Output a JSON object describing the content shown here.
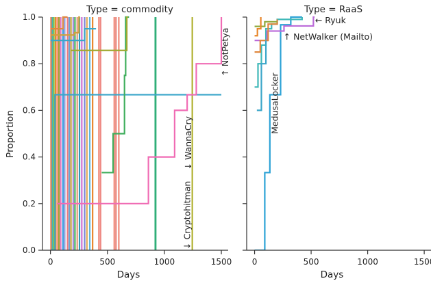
{
  "chart_data": {
    "type": "line",
    "chart_style": "step",
    "ylabel": "Proportion",
    "ylim": [
      0,
      1
    ],
    "yticks": [
      0.0,
      0.2,
      0.4,
      0.6,
      0.8,
      1.0
    ],
    "shared_y": true,
    "panels": [
      {
        "title": "Type = commodity",
        "xlabel": "Days",
        "xlim": [
          -70,
          1560
        ],
        "xticks": [
          0,
          500,
          1000,
          1500
        ],
        "vlines": [
          {
            "x": 5,
            "color": "#e07b54"
          },
          {
            "x": 18,
            "color": "#3fb8b8"
          },
          {
            "x": 30,
            "color": "#8fbf3f"
          },
          {
            "x": 45,
            "color": "#e8862a"
          },
          {
            "x": 60,
            "color": "#f28e6e"
          },
          {
            "x": 75,
            "color": "#a0a030"
          },
          {
            "x": 90,
            "color": "#e377c2"
          },
          {
            "x": 110,
            "color": "#3a9ee0"
          },
          {
            "x": 125,
            "color": "#8b9bd9"
          },
          {
            "x": 150,
            "color": "#f07b80"
          },
          {
            "x": 165,
            "color": "#6aa6d0"
          },
          {
            "x": 180,
            "color": "#c7a03a"
          },
          {
            "x": 200,
            "color": "#a98bd6"
          },
          {
            "x": 215,
            "color": "#3fae5c"
          },
          {
            "x": 235,
            "color": "#e39a7a"
          },
          {
            "x": 255,
            "color": "#2e9ab4"
          },
          {
            "x": 275,
            "color": "#d070d0"
          },
          {
            "x": 300,
            "color": "#7a86d8"
          },
          {
            "x": 320,
            "color": "#e0aa5a"
          },
          {
            "x": 345,
            "color": "#5bb6e0"
          },
          {
            "x": 370,
            "color": "#e8862a"
          },
          {
            "x": 425,
            "color": "#f08a7a"
          },
          {
            "x": 440,
            "color": "#ef8a84"
          },
          {
            "x": 560,
            "color": "#f08a7a"
          },
          {
            "x": 575,
            "color": "#e8857c"
          },
          {
            "x": 600,
            "color": "#f08a7a"
          },
          {
            "x": 920,
            "color": "#2fae78"
          },
          {
            "x": 924,
            "color": "#2fae78"
          },
          {
            "x": 1245,
            "color": "#b0b030"
          }
        ],
        "series": [
          {
            "color": "#3aa6c9",
            "x": [
              0,
              40,
              1500
            ],
            "y": [
              0,
              0.667,
              0.667
            ]
          },
          {
            "color": "#f06bb4",
            "x": [
              60,
              860,
              1090,
              1200,
              1280,
              1500
            ],
            "y": [
              0.2,
              0.4,
              0.6,
              0.667,
              0.8,
              1.0
            ]
          },
          {
            "color": "#3fae5c",
            "x": [
              450,
              550,
              650,
              660,
              690
            ],
            "y": [
              0.333,
              0.5,
              0.75,
              1.0,
              1.0
            ]
          },
          {
            "color": "#a0a830",
            "x": [
              180,
              240,
              670,
              680
            ],
            "y": [
              0.857,
              0.857,
              1.0,
              1.0
            ]
          },
          {
            "color": "#d0a040",
            "x": [
              0,
              210,
              250,
              260
            ],
            "y": [
              0.923,
              0.933,
              1.0,
              1.0
            ]
          },
          {
            "color": "#e08840",
            "x": [
              0,
              40,
              110,
              150
            ],
            "y": [
              0.95,
              0.95,
              1.0,
              1.0
            ]
          },
          {
            "color": "#3aa6c9",
            "x": [
              0,
              120,
              300,
              400
            ],
            "y": [
              0.9,
              0.9,
              0.95,
              0.95
            ]
          }
        ],
        "annotations": [
          {
            "text": "↑ NotPetya",
            "x": 1560,
            "y": 0.85,
            "rotation": -90
          },
          {
            "text": "↓ WannaCry",
            "x": 1235,
            "y": 0.46,
            "rotation": -90
          },
          {
            "text": "↓ Cryptohitman",
            "x": 1225,
            "y": 0.15,
            "rotation": -90
          }
        ]
      },
      {
        "title": "Type = RaaS",
        "xlabel": "Days",
        "xlim": [
          -70,
          1560
        ],
        "xticks": [
          0,
          500,
          1000,
          1500
        ],
        "vlines": [],
        "series": [
          {
            "color": "#2ca2d6",
            "x": [
              0,
              90,
              135,
              175,
              230,
              270,
              320,
              420
            ],
            "y": [
              0,
              0.333,
              0.667,
              0.667,
              0.967,
              0.967,
              1.0,
              1.0
            ]
          },
          {
            "color": "#3fb8b8",
            "x": [
              0,
              30,
              60,
              100,
              150,
              200,
              420
            ],
            "y": [
              0.7,
              0.8,
              0.88,
              0.95,
              0.97,
              0.99,
              1.0
            ]
          },
          {
            "color": "#bb6bd9",
            "x": [
              0,
              110,
              260,
              520,
              530
            ],
            "y": [
              0.9,
              0.94,
              0.962,
              1.0,
              1.0
            ]
          },
          {
            "color": "#e08840",
            "x": [
              0,
              50,
              120,
              200
            ],
            "y": [
              0.85,
              0.9,
              0.97,
              0.99
            ]
          },
          {
            "color": "#8fa83a",
            "x": [
              0,
              60,
              90,
              200
            ],
            "y": [
              0.96,
              0.96,
              0.98,
              0.98
            ]
          },
          {
            "color": "#e8862a",
            "x": [
              0,
              25,
              55
            ],
            "y": [
              0.92,
              0.95,
              1.0
            ]
          },
          {
            "color": "#3aa6c9",
            "x": [
              20,
              60,
              100
            ],
            "y": [
              0.6,
              0.8,
              0.9
            ]
          }
        ],
        "annotations": [
          {
            "text": "← Ryuk",
            "x": 535,
            "y": 0.985,
            "rotation": 0
          },
          {
            "text": "↑ NetWalker (Mailto)",
            "x": 255,
            "y": 0.915,
            "rotation": 0
          },
          {
            "text": "MedusaLocker",
            "x": 205,
            "y": 0.63,
            "rotation": -90
          }
        ]
      }
    ]
  }
}
